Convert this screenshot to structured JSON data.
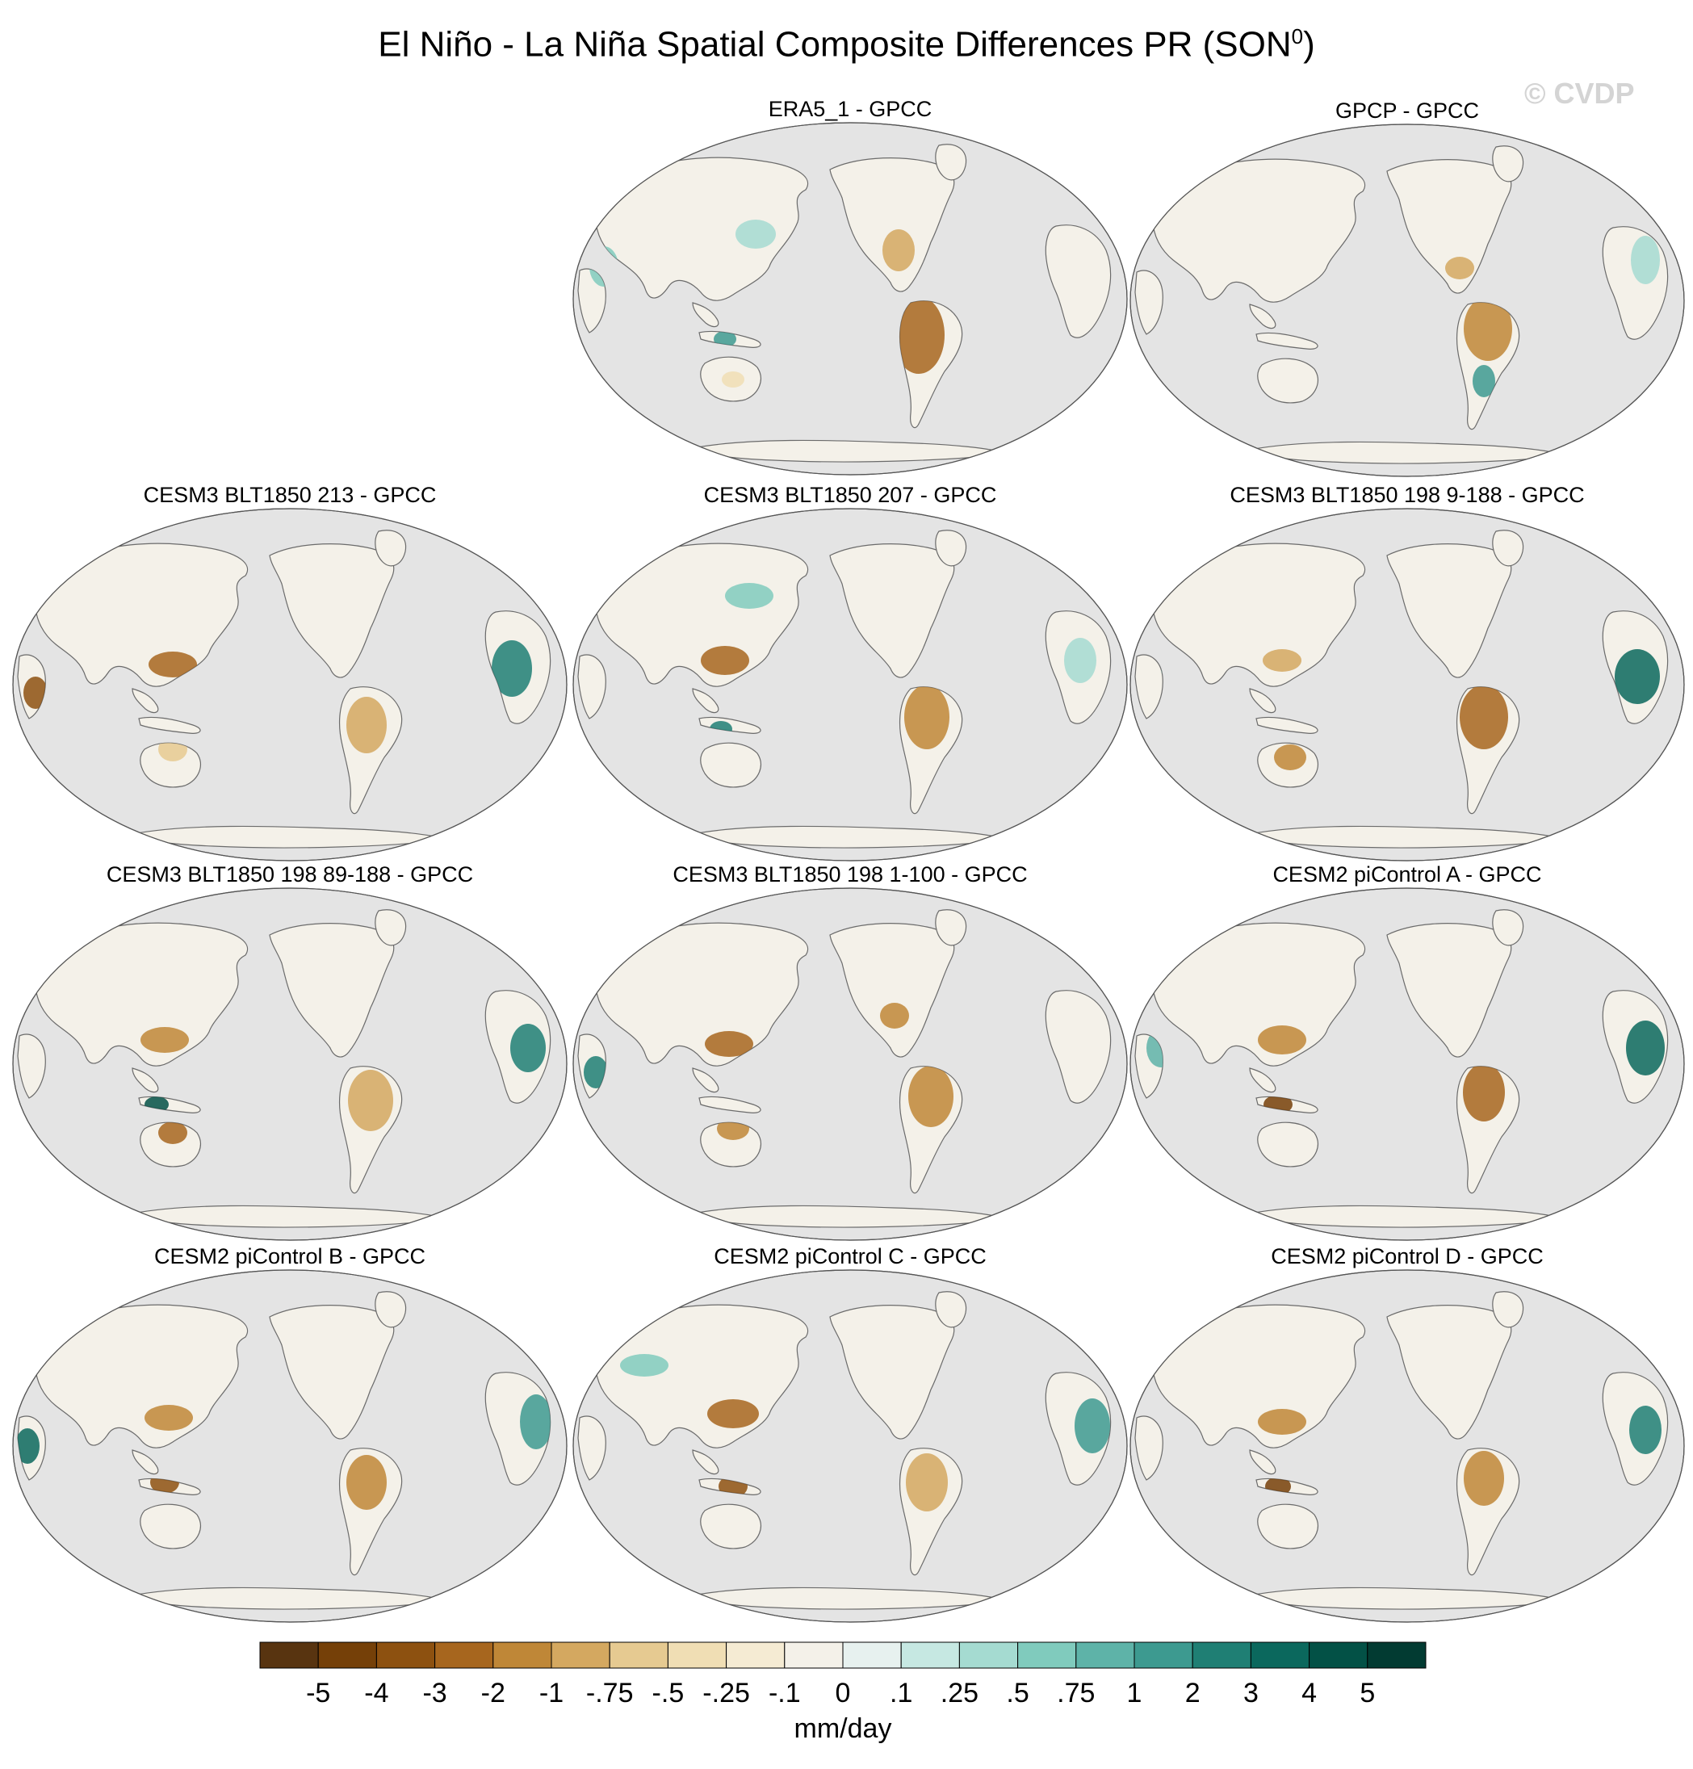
{
  "figure": {
    "title": "El Niño - La Niña Spatial Composite Differences PR (SON",
    "title_superscript": "0",
    "title_end": ")",
    "watermark": "© CVDP"
  },
  "panels": [
    {
      "title": "ERA5_1 - GPCC"
    },
    {
      "title": "GPCP - GPCC"
    },
    {
      "title": "CESM3 BLT1850 213 - GPCC"
    },
    {
      "title": "CESM3 BLT1850 207 - GPCC"
    },
    {
      "title": "CESM3 BLT1850 198 9-188 - GPCC"
    },
    {
      "title": "CESM3 BLT1850 198 89-188 - GPCC"
    },
    {
      "title": "CESM3 BLT1850 198 1-100 - GPCC"
    },
    {
      "title": "CESM2 piControl A - GPCC"
    },
    {
      "title": "CESM2 piControl B - GPCC"
    },
    {
      "title": "CESM2 piControl C - GPCC"
    },
    {
      "title": "CESM2 piControl D - GPCC"
    }
  ],
  "colorbar": {
    "label": "mm/day",
    "tick_labels": [
      "-5",
      "-4",
      "-3",
      "-2",
      "-1",
      "-.75",
      "-.5",
      "-.25",
      "-.1",
      "0",
      ".1",
      ".25",
      ".5",
      ".75",
      "1",
      "2",
      "3",
      "4",
      "5"
    ],
    "colors": [
      "#583410",
      "#754008",
      "#8d5110",
      "#a7661e",
      "#bf8737",
      "#d4a860",
      "#e6ca91",
      "#f0deb4",
      "#f5ebd3",
      "#f4f1e9",
      "#e7f1ef",
      "#c6e8e2",
      "#a5dbd1",
      "#80cbbd",
      "#5eb3a8",
      "#3d9a90",
      "#1f7f74",
      "#0b685d",
      "#035146",
      "#023b32"
    ]
  },
  "map_colors": {
    "ocean": "#e4e4e4",
    "coast": "#6b6b6b"
  }
}
